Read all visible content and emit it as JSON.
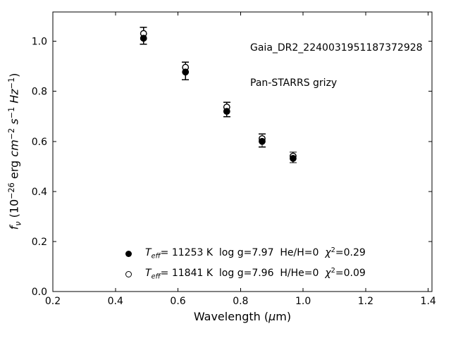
{
  "figure": {
    "background": "#ffffff",
    "foreground": "#000000"
  },
  "annotation": {
    "line1": "Gaia_DR2_2240031951187372928",
    "line2": "Pan-STARRS grizy"
  },
  "chart_data": {
    "type": "scatter",
    "title": "",
    "xlabel": "Wavelength (μm)",
    "ylabel": "f_ν (10−26 erg cm−2 s−1 Hz−1)",
    "xlabel_parts": [
      {
        "t": "Wavelength ("
      },
      {
        "t": "μ",
        "i": true
      },
      {
        "t": "m)"
      }
    ],
    "ylabel_parts": [
      {
        "t": "f",
        "i": true
      },
      {
        "t": "ν",
        "i": true,
        "sub": true
      },
      {
        "t": " (10"
      },
      {
        "t": "−26",
        "sup": true
      },
      {
        "t": " erg "
      },
      {
        "t": "cm",
        "i": true
      },
      {
        "t": "−2",
        "sup": true
      },
      {
        "t": " "
      },
      {
        "t": "s",
        "i": true
      },
      {
        "t": "−1",
        "sup": true
      },
      {
        "t": " "
      },
      {
        "t": "Hz",
        "i": true
      },
      {
        "t": "−1",
        "sup": true
      },
      {
        "t": ")"
      }
    ],
    "xlim": [
      0.2,
      1.412
    ],
    "ylim": [
      0.0,
      1.117
    ],
    "xticks": [
      0.2,
      0.4,
      0.6,
      0.8,
      1.0,
      1.2,
      1.4
    ],
    "yticks": [
      0.0,
      0.2,
      0.4,
      0.6,
      0.8,
      1.0
    ],
    "grid": false,
    "tick_direction": "in",
    "legend_position": "lower left inside, no frame",
    "x": [
      0.49,
      0.624,
      0.756,
      0.869,
      0.968
    ],
    "series": [
      {
        "name": "observed-photometry",
        "marker": "errorbar",
        "values": [
          1.022,
          0.881,
          0.727,
          0.604,
          0.536
        ],
        "errors": [
          0.034,
          0.035,
          0.029,
          0.026,
          0.021
        ]
      },
      {
        "name": "model-filled",
        "marker": "filled-circle",
        "values": [
          1.012,
          0.877,
          0.72,
          0.6,
          0.532
        ],
        "legend_text": "T_eff= 11253 K  log g=7.97  He/H=0  χ2=0.29",
        "legend_parts": [
          {
            "t": "T",
            "i": true
          },
          {
            "t": "eff",
            "i": true,
            "sub": true
          },
          {
            "t": "= 11253 K  log g=7.97  He/H=0  "
          },
          {
            "t": "χ",
            "i": true
          },
          {
            "t": "2",
            "sup": true
          },
          {
            "t": "=0.29"
          }
        ]
      },
      {
        "name": "model-open",
        "marker": "open-circle",
        "values": [
          1.031,
          0.896,
          0.737,
          0.611,
          0.541
        ],
        "legend_text": "T_eff= 11841 K  log g=7.96  H/He=0  χ2=0.09",
        "legend_parts": [
          {
            "t": "T",
            "i": true
          },
          {
            "t": "eff",
            "i": true,
            "sub": true
          },
          {
            "t": "= 11841 K  log g=7.96  H/He=0  "
          },
          {
            "t": "χ",
            "i": true
          },
          {
            "t": "2",
            "sup": true
          },
          {
            "t": "=0.09"
          }
        ]
      }
    ]
  }
}
